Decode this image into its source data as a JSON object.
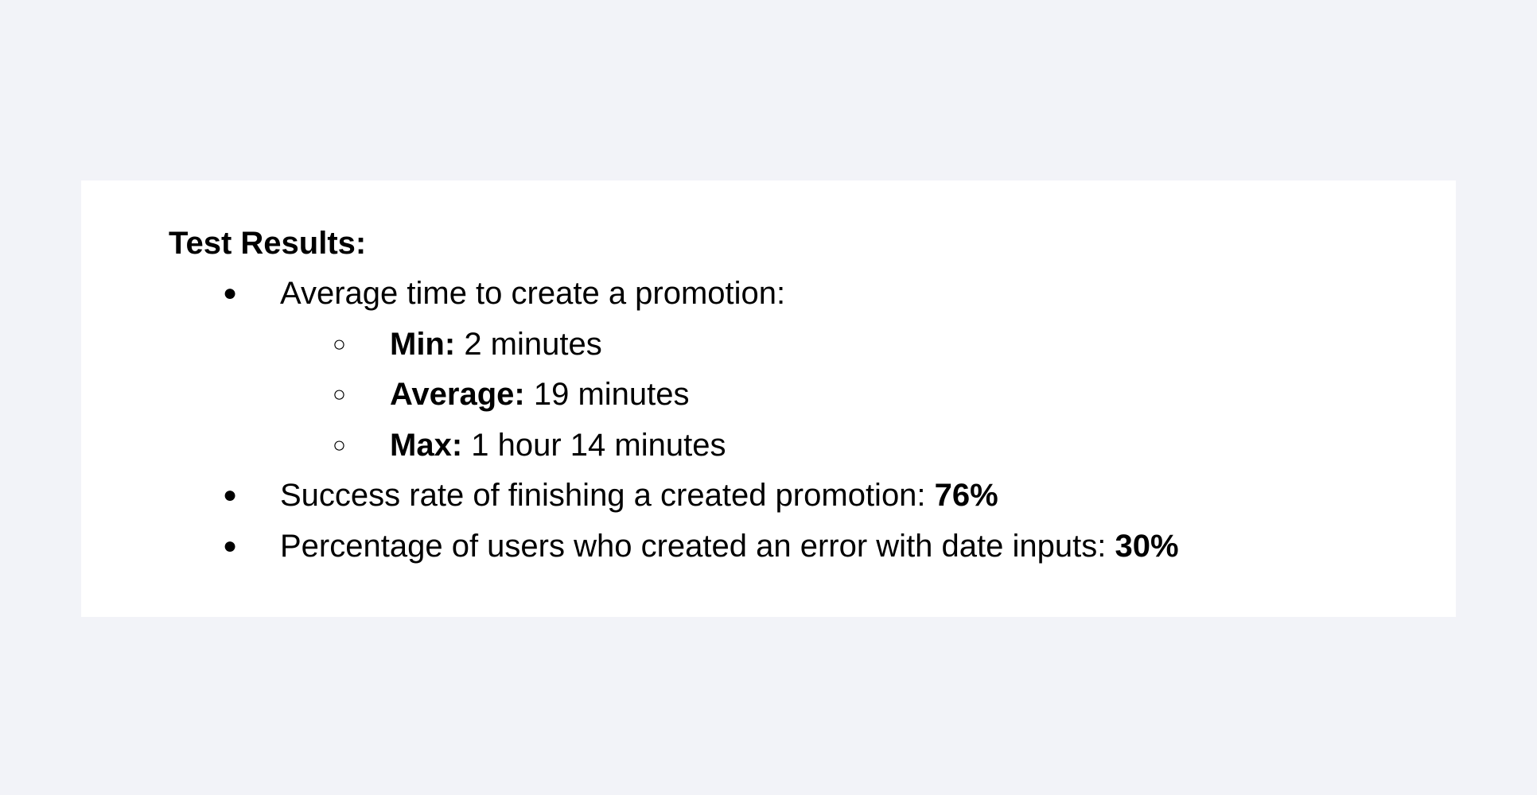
{
  "document": {
    "heading": "Test Results:",
    "bullets": [
      {
        "marker": "●",
        "text": "Average time to create a promotion:",
        "sub_bullets": [
          {
            "marker": "○",
            "label": "Min:",
            "value": "2 minutes"
          },
          {
            "marker": "○",
            "label": "Average:",
            "value": "19 minutes"
          },
          {
            "marker": "○",
            "label": "Max:",
            "value": "1 hour 14 minutes"
          }
        ]
      },
      {
        "marker": "●",
        "text": "Success rate of finishing a created promotion:",
        "value": "76%"
      },
      {
        "marker": "●",
        "text": "Percentage of users who created an error with date inputs:",
        "value": "30%"
      }
    ]
  }
}
